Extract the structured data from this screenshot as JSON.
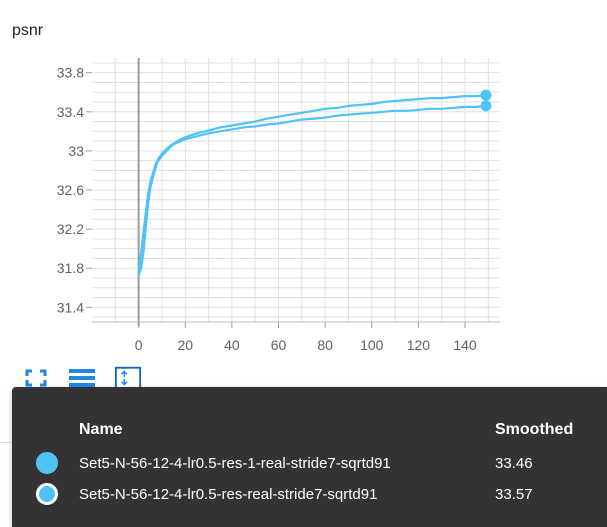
{
  "card": {
    "title": "psnr"
  },
  "toolbar": {
    "buttons": [
      {
        "name": "fullscreen-icon"
      },
      {
        "name": "menu-lines-icon"
      },
      {
        "name": "fit-domain-icon"
      }
    ]
  },
  "tooltip": {
    "header_name": "Name",
    "header_smoothed": "Smoothed",
    "rows": [
      {
        "name": "Set5-N-56-12-4-lr0.5-res-1-real-stride7-sqrtd91",
        "value": "33.46",
        "swatch_fill": "#4fc3f7",
        "swatch_border": "#4fc3f7"
      },
      {
        "name": "Set5-N-56-12-4-lr0.5-res-real-stride7-sqrtd91",
        "value": "33.57",
        "swatch_fill": "#4fc3f7",
        "swatch_border": "#ffffff"
      }
    ]
  },
  "colors": {
    "series": "#4fc3f7",
    "grid": "#e0e0e0",
    "tooltip_bg": "#333333"
  },
  "chart_data": {
    "type": "line",
    "title": "psnr",
    "x_ticks": [
      "0",
      "20",
      "40",
      "60",
      "80",
      "100",
      "120",
      "140"
    ],
    "y_ticks": [
      "31.4",
      "31.8",
      "32.2",
      "32.6",
      "33",
      "33.4",
      "33.8"
    ],
    "xlim": [
      -20,
      155
    ],
    "ylim": [
      31.25,
      33.95
    ],
    "grid": true,
    "series": [
      {
        "name": "Set5-N-56-12-4-lr0.5-res-1-real-stride7-sqrtd91",
        "x": [
          0,
          1,
          2,
          3,
          4,
          5,
          6,
          7,
          8,
          9,
          10,
          12,
          14,
          16,
          18,
          20,
          25,
          30,
          35,
          40,
          45,
          50,
          55,
          60,
          65,
          70,
          75,
          80,
          85,
          90,
          95,
          100,
          105,
          110,
          115,
          120,
          125,
          130,
          135,
          140,
          145,
          149
        ],
        "y": [
          31.72,
          31.8,
          31.95,
          32.2,
          32.45,
          32.62,
          32.72,
          32.8,
          32.88,
          32.92,
          32.95,
          33.0,
          33.05,
          33.08,
          33.1,
          33.12,
          33.15,
          33.18,
          33.2,
          33.22,
          33.24,
          33.25,
          33.27,
          33.28,
          33.3,
          33.32,
          33.33,
          33.34,
          33.36,
          33.37,
          33.38,
          33.39,
          33.4,
          33.41,
          33.41,
          33.42,
          33.43,
          33.43,
          33.44,
          33.45,
          33.45,
          33.46
        ]
      },
      {
        "name": "Set5-N-56-12-4-lr0.5-res-real-stride7-sqrtd91",
        "x": [
          0,
          1,
          2,
          3,
          4,
          5,
          6,
          7,
          8,
          9,
          10,
          12,
          14,
          16,
          18,
          20,
          25,
          30,
          35,
          40,
          45,
          50,
          55,
          60,
          65,
          70,
          75,
          80,
          85,
          90,
          95,
          100,
          105,
          110,
          115,
          120,
          125,
          130,
          135,
          140,
          145,
          149
        ],
        "y": [
          31.75,
          31.95,
          32.15,
          32.35,
          32.55,
          32.68,
          32.76,
          32.84,
          32.9,
          32.94,
          32.97,
          33.02,
          33.06,
          33.09,
          33.12,
          33.14,
          33.18,
          33.21,
          33.24,
          33.26,
          33.28,
          33.3,
          33.33,
          33.35,
          33.37,
          33.39,
          33.41,
          33.43,
          33.44,
          33.46,
          33.47,
          33.48,
          33.5,
          33.51,
          33.52,
          33.53,
          33.54,
          33.54,
          33.55,
          33.56,
          33.56,
          33.57
        ]
      }
    ]
  }
}
